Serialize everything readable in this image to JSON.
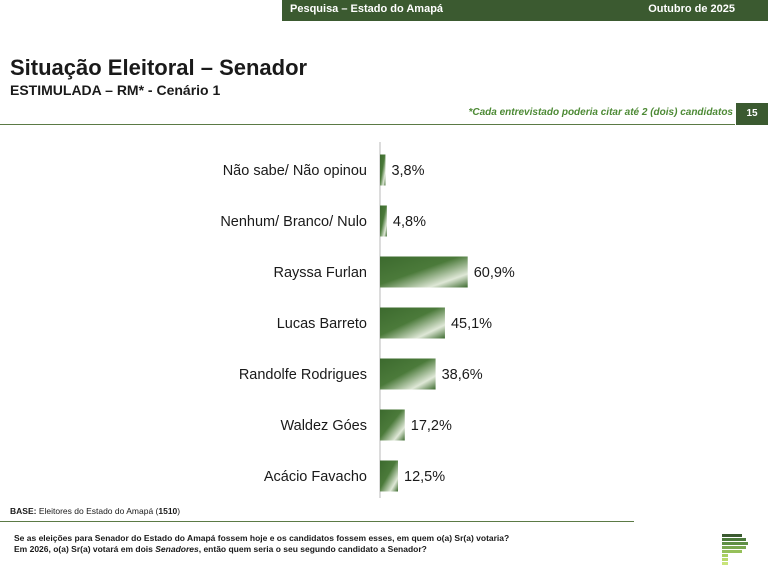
{
  "header": {
    "survey": "Pesquisa – Estado do Amapá",
    "date": "Outubro de 2025"
  },
  "title": "Situação Eleitoral – Senador",
  "subtitle": "ESTIMULADA – RM* - Cenário 1",
  "note": "*Cada entrevistado poderia citar até 2 (dois) candidatos",
  "page_number": "15",
  "base": {
    "label": "BASE:",
    "text": " Eleitores do Estado do Amapá (",
    "count": "1510",
    "close": ")"
  },
  "question": {
    "line1": "Se as eleições para Senador do Estado do Amapá fossem hoje e os candidatos fossem esses, em quem o(a) Sr(a) votaria?",
    "line2_pre": "Em 2026, o(a) Sr(a) votará em dois ",
    "line2_em": "Senadores",
    "line2_post": ", então quem seria o seu segundo candidato a Senador?"
  },
  "colors": {
    "accent": "#3b5a30",
    "bar_dark": "#3c6a2e",
    "bar_light": "#e6eee0",
    "note_green": "#4d8a35"
  },
  "chart_data": {
    "type": "bar",
    "orientation": "horizontal",
    "categories": [
      "Não sabe/ Não opinou",
      "Nenhum/ Branco/ Nulo",
      "Rayssa Furlan",
      "Lucas Barreto",
      "Randolfe Rodrigues",
      "Waldez Góes",
      "Acácio Favacho"
    ],
    "values": [
      3.8,
      4.8,
      60.9,
      45.1,
      38.6,
      17.2,
      12.5
    ],
    "value_labels": [
      "3,8%",
      "4,8%",
      "60,9%",
      "45,1%",
      "38,6%",
      "17,2%",
      "12,5%"
    ],
    "unit": "%",
    "xlim": [
      0,
      100
    ],
    "grid": false,
    "legend": "none"
  }
}
